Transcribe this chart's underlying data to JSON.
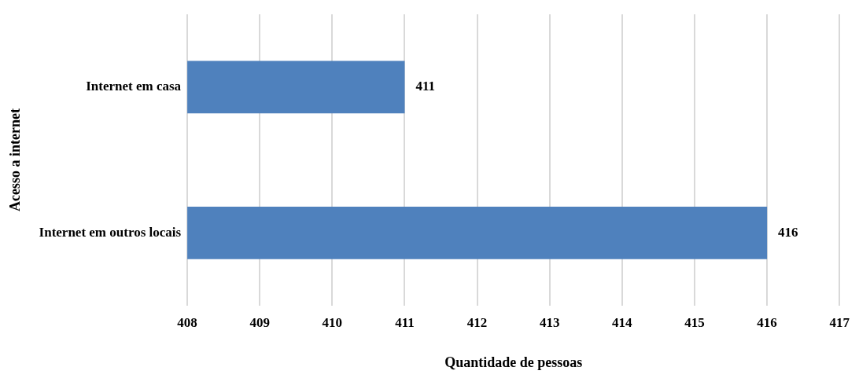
{
  "chart_data": {
    "type": "bar",
    "orientation": "horizontal",
    "categories": [
      "Internet em casa",
      "Internet em outros locais"
    ],
    "values": [
      411,
      416
    ],
    "color": "#4f81bd",
    "xlim": [
      408,
      417
    ],
    "xticks": [
      408,
      409,
      410,
      411,
      412,
      413,
      414,
      415,
      416,
      417
    ],
    "xlabel": "Quantidade de pessoas",
    "ylabel": "Acesso a internet",
    "grid": "x",
    "data_labels": true,
    "legend": false
  }
}
